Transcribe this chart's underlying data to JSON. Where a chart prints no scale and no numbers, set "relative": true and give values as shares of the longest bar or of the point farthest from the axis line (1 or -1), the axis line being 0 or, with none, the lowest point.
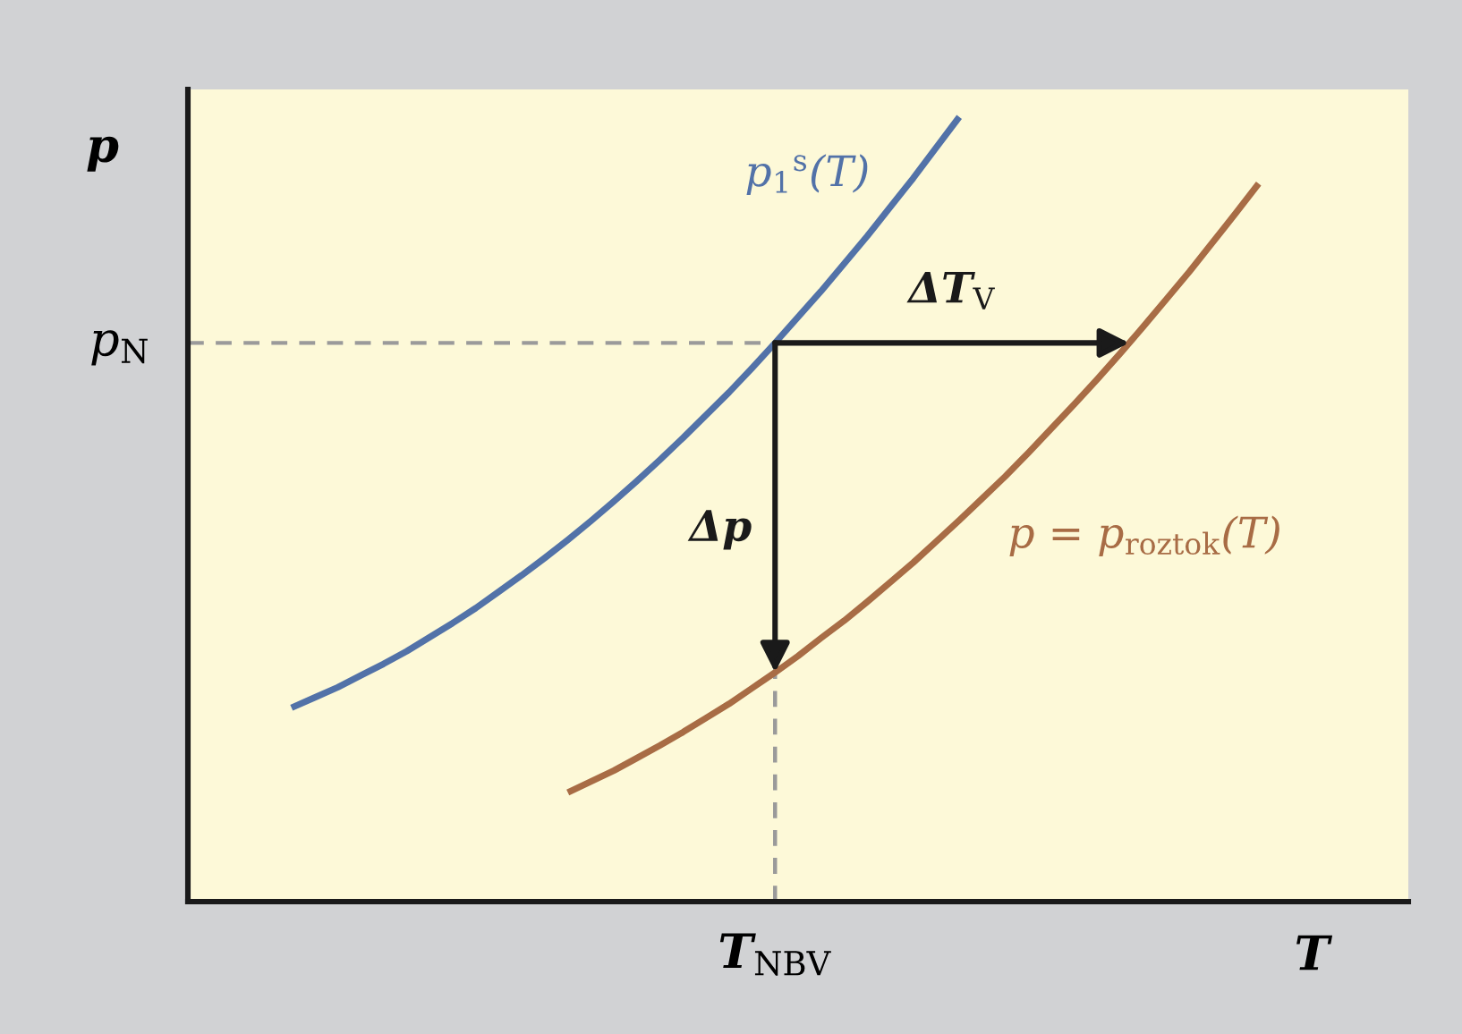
{
  "chart_data": {
    "type": "line",
    "relative": true,
    "xlabel": "T",
    "ylabel": "p",
    "line_style": "solid",
    "categories": [
      null,
      null,
      null,
      null,
      null,
      null,
      null,
      null,
      null,
      null,
      null,
      null,
      null,
      null,
      null,
      null,
      null,
      null,
      null,
      null,
      null,
      null,
      null,
      null,
      null,
      null,
      null,
      null,
      null,
      null,
      null,
      null,
      null,
      null,
      null,
      null,
      null,
      null,
      null,
      null,
      null,
      null,
      null,
      null,
      null,
      null,
      null,
      null,
      null,
      null,
      null,
      null,
      null
    ],
    "series": [
      {
        "name": "p$_{1}$$^{s}$(T)",
        "color": "#5272a8",
        "values": [
          null,
          null,
          null,
          null,
          0.247,
          0.26,
          0.273,
          0.288,
          0.303,
          0.319,
          0.337,
          0.355,
          0.374,
          0.395,
          0.416,
          0.438,
          0.461,
          0.485,
          0.51,
          0.536,
          0.563,
          0.591,
          0.62,
          0.649,
          0.68,
          0.712,
          0.745,
          0.778,
          0.813,
          0.848,
          0.885,
          0.922,
          0.961,
          1.0,
          null,
          null,
          null,
          null,
          null,
          null,
          null,
          null,
          null,
          null,
          null,
          null,
          null,
          null,
          null,
          null,
          null,
          null,
          null
        ]
      },
      {
        "name": "p = p$_{roztok}$(T)",
        "color": "#a86c45",
        "values": [
          null,
          null,
          null,
          null,
          null,
          null,
          null,
          null,
          null,
          null,
          null,
          null,
          null,
          null,
          null,
          null,
          0.139,
          0.153,
          0.167,
          0.183,
          0.199,
          0.216,
          0.234,
          0.252,
          0.272,
          0.292,
          0.313,
          0.336,
          0.358,
          0.382,
          0.407,
          0.432,
          0.459,
          0.486,
          0.514,
          0.542,
          0.572,
          0.603,
          0.634,
          0.666,
          0.699,
          0.733,
          0.768,
          0.803,
          0.84,
          0.877,
          0.915,
          null,
          null,
          null,
          null,
          null,
          null
        ]
      }
    ],
    "ref_lines": [
      {
        "axis": "y",
        "value": 0.712,
        "label": "p$_{N}$",
        "color": "#9a9a9a",
        "line_style": "dashed"
      }
    ],
    "annotations": [
      "ΔT$_{V}$",
      "Δp",
      "T$_{NBV}$"
    ]
  }
}
